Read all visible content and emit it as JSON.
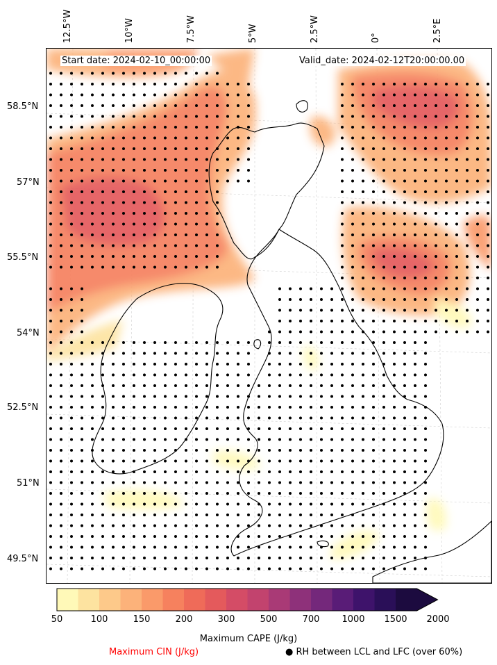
{
  "header": {
    "start_date": "Start date: 2024-02-10_00:00:00",
    "valid_date": "Valid_date: 2024-02-12T20:00:00.00"
  },
  "longitude_labels": [
    "12.5°W",
    "10°W",
    "7.5°W",
    "5°W",
    "2.5°W",
    "0°",
    "2.5°E"
  ],
  "latitude_labels": [
    "58.5°N",
    "57°N",
    "55.5°N",
    "54°N",
    "52.5°N",
    "51°N",
    "49.5°N"
  ],
  "colorbar": {
    "label": "Maximum CAPE (J/kg)",
    "ticks": [
      "50",
      "100",
      "150",
      "200",
      "300",
      "500",
      "700",
      "1000",
      "1500",
      "2000"
    ],
    "colors": [
      "#fff9b8",
      "#fde3a0",
      "#fdc98a",
      "#fcb27a",
      "#fa9a6a",
      "#f6815e",
      "#ef6b59",
      "#e45a5c",
      "#d44c66",
      "#c2436e",
      "#a93a76",
      "#8e317a",
      "#74287b",
      "#591c77",
      "#3e136b",
      "#2a0f58",
      "#1c0b3f"
    ]
  },
  "legend": {
    "cin_label": "Maximum CIN (J/kg)",
    "cin_color": "#ff0000",
    "rh_label": "● RH between LCL and LFC (over 60%)"
  }
}
